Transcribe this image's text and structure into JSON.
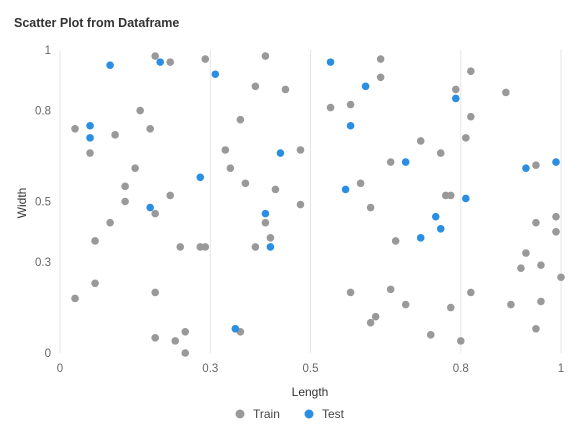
{
  "chart_data": {
    "type": "scatter",
    "title": "Scatter Plot from Dataframe",
    "xlabel": "Length",
    "ylabel": "Width",
    "xlim": [
      0,
      1
    ],
    "ylim": [
      0,
      1
    ],
    "x_ticks": [
      {
        "value": 0,
        "label": "0"
      },
      {
        "value": 0.3,
        "label": "0.3"
      },
      {
        "value": 0.5,
        "label": "0.5"
      },
      {
        "value": 0.8,
        "label": "0.8"
      },
      {
        "value": 1,
        "label": "1"
      }
    ],
    "y_ticks": [
      {
        "value": 0,
        "label": "0"
      },
      {
        "value": 0.3,
        "label": "0.3"
      },
      {
        "value": 0.5,
        "label": "0.5"
      },
      {
        "value": 0.8,
        "label": "0.8"
      },
      {
        "value": 1,
        "label": "1"
      }
    ],
    "grid": "vertical",
    "legend_position": "bottom",
    "series": [
      {
        "name": "Train",
        "color": "#999999",
        "points": [
          [
            0.03,
            0.74
          ],
          [
            0.03,
            0.18
          ],
          [
            0.07,
            0.23
          ],
          [
            0.06,
            0.66
          ],
          [
            0.07,
            0.37
          ],
          [
            0.1,
            0.43
          ],
          [
            0.11,
            0.72
          ],
          [
            0.13,
            0.5
          ],
          [
            0.13,
            0.55
          ],
          [
            0.15,
            0.61
          ],
          [
            0.16,
            0.8
          ],
          [
            0.18,
            0.74
          ],
          [
            0.19,
            0.46
          ],
          [
            0.19,
            0.98
          ],
          [
            0.19,
            0.2
          ],
          [
            0.19,
            0.05
          ],
          [
            0.22,
            0.96
          ],
          [
            0.22,
            0.52
          ],
          [
            0.23,
            0.04
          ],
          [
            0.24,
            0.35
          ],
          [
            0.25,
            0.07
          ],
          [
            0.25,
            0.0
          ],
          [
            0.28,
            0.35
          ],
          [
            0.29,
            0.35
          ],
          [
            0.29,
            0.97
          ],
          [
            0.33,
            0.67
          ],
          [
            0.34,
            0.61
          ],
          [
            0.36,
            0.07
          ],
          [
            0.36,
            0.77
          ],
          [
            0.37,
            0.56
          ],
          [
            0.39,
            0.88
          ],
          [
            0.39,
            0.35
          ],
          [
            0.41,
            0.98
          ],
          [
            0.41,
            0.43
          ],
          [
            0.42,
            0.38
          ],
          [
            0.43,
            0.54
          ],
          [
            0.45,
            0.87
          ],
          [
            0.48,
            0.49
          ],
          [
            0.48,
            0.67
          ],
          [
            0.54,
            0.81
          ],
          [
            0.58,
            0.82
          ],
          [
            0.58,
            0.2
          ],
          [
            0.6,
            0.56
          ],
          [
            0.62,
            0.48
          ],
          [
            0.62,
            0.1
          ],
          [
            0.63,
            0.12
          ],
          [
            0.64,
            0.91
          ],
          [
            0.64,
            0.97
          ],
          [
            0.66,
            0.21
          ],
          [
            0.66,
            0.63
          ],
          [
            0.67,
            0.37
          ],
          [
            0.69,
            0.16
          ],
          [
            0.72,
            0.7
          ],
          [
            0.74,
            0.06
          ],
          [
            0.76,
            0.66
          ],
          [
            0.77,
            0.52
          ],
          [
            0.78,
            0.15
          ],
          [
            0.78,
            0.52
          ],
          [
            0.79,
            0.87
          ],
          [
            0.8,
            0.04
          ],
          [
            0.81,
            0.71
          ],
          [
            0.82,
            0.93
          ],
          [
            0.82,
            0.78
          ],
          [
            0.82,
            0.2
          ],
          [
            0.89,
            0.86
          ],
          [
            0.9,
            0.16
          ],
          [
            0.92,
            0.28
          ],
          [
            0.93,
            0.33
          ],
          [
            0.95,
            0.62
          ],
          [
            0.95,
            0.43
          ],
          [
            0.95,
            0.08
          ],
          [
            0.96,
            0.17
          ],
          [
            0.96,
            0.29
          ],
          [
            0.99,
            0.45
          ],
          [
            0.99,
            0.4
          ],
          [
            1.0,
            0.25
          ]
        ]
      },
      {
        "name": "Test",
        "color": "#2a8ee2",
        "points": [
          [
            0.06,
            0.75
          ],
          [
            0.06,
            0.71
          ],
          [
            0.1,
            0.95
          ],
          [
            0.18,
            0.48
          ],
          [
            0.2,
            0.96
          ],
          [
            0.28,
            0.58
          ],
          [
            0.31,
            0.92
          ],
          [
            0.35,
            0.08
          ],
          [
            0.41,
            0.46
          ],
          [
            0.42,
            0.35
          ],
          [
            0.44,
            0.66
          ],
          [
            0.54,
            0.96
          ],
          [
            0.57,
            0.54
          ],
          [
            0.58,
            0.75
          ],
          [
            0.61,
            0.88
          ],
          [
            0.69,
            0.63
          ],
          [
            0.72,
            0.38
          ],
          [
            0.75,
            0.45
          ],
          [
            0.76,
            0.41
          ],
          [
            0.79,
            0.84
          ],
          [
            0.81,
            0.51
          ],
          [
            0.93,
            0.61
          ],
          [
            0.99,
            0.63
          ]
        ]
      }
    ]
  }
}
